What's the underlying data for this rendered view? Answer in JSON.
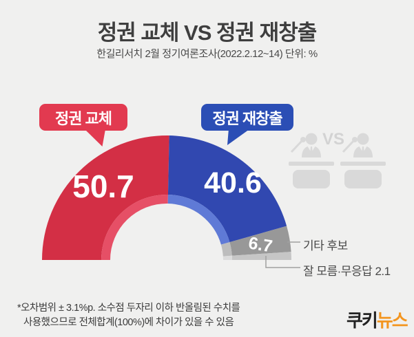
{
  "header": {
    "title": "정권 교체 VS 정권 재창출",
    "subtitle": "한길리서치 2월 정기여론조사(2022.2.12~14) 단위: %"
  },
  "bubbles": {
    "left": {
      "label": "정권 교체",
      "color": "#e23a50"
    },
    "right": {
      "label": "정권 재창출",
      "color": "#2b4eb5"
    }
  },
  "chart_data": {
    "type": "pie",
    "variant": "semi-donut",
    "unit": "%",
    "title": "정권 교체 VS 정권 재창출",
    "legend_position": "callout-right",
    "segments": [
      {
        "name": "정권 교체",
        "value": 50.7,
        "color": "#d32f45",
        "inner_color": "#e64f66"
      },
      {
        "name": "정권 재창출",
        "value": 40.6,
        "color": "#3148b0",
        "inner_color": "#5f7ad6"
      },
      {
        "name": "기타 후보",
        "value": 6.7,
        "color": "#989898",
        "inner_color": "#bdbdbd"
      },
      {
        "name": "잘 모름·무응답",
        "value": 2.1,
        "color": "#c6c6c6",
        "inner_color": "#dcdcdc"
      }
    ]
  },
  "watermark": {
    "vs_label": "VS"
  },
  "footnote": {
    "line1": "*오차범위 ± 3.1%p. 소수점 두자리 이하 반올림된 수치를",
    "line2": "사용했으므로 전체합계(100%)에 차이가 있을 수 있음"
  },
  "logo": {
    "black": "쿠키",
    "orange": "뉴스"
  }
}
